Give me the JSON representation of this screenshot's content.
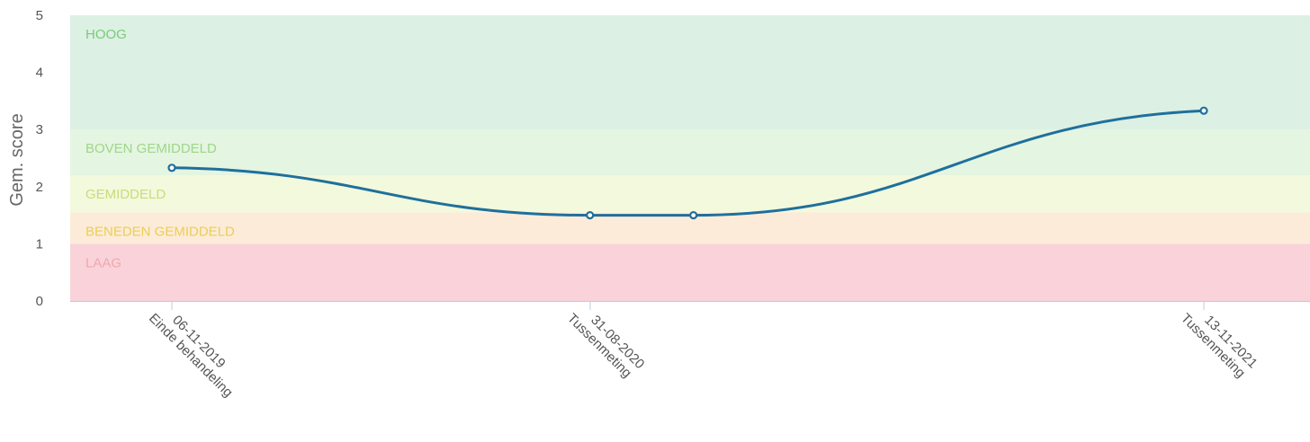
{
  "chart_data": {
    "type": "line",
    "ylabel": "Gem. score",
    "xlabel": "",
    "ylim": [
      0,
      5
    ],
    "yticks": [
      "0",
      "1",
      "2",
      "3",
      "4",
      "5"
    ],
    "bands": [
      {
        "label": "LAAG",
        "from": 0,
        "to": 1,
        "fill": "#f9d3d9",
        "text_color": "#f2a6ae"
      },
      {
        "label": "BENEDEN GEMIDDELD",
        "from": 1,
        "to": 1.55,
        "fill": "#fdebd9",
        "text_color": "#e9cf55"
      },
      {
        "label": "GEMIDDELD",
        "from": 1.55,
        "to": 2.2,
        "fill": "#f2f9dc",
        "text_color": "#c9dc7c"
      },
      {
        "label": "BOVEN GEMIDDELD",
        "from": 2.2,
        "to": 3,
        "fill": "#e4f5e1",
        "text_color": "#9fd68a"
      },
      {
        "label": "HOOG",
        "from": 3,
        "to": 5,
        "fill": "#dcf0e4",
        "text_color": "#7cc97a"
      }
    ],
    "x_ticks": [
      {
        "date": "06-11-2019",
        "label": "Einde behandeling"
      },
      {
        "date": "31-08-2020",
        "label": "Tussenmeting"
      },
      {
        "date": "13-11-2021",
        "label": "Tussenmeting"
      }
    ],
    "series": [
      {
        "color": "#1f6f9c",
        "points": [
          {
            "x": "2019-11-06",
            "y": 2.33
          },
          {
            "x": "2020-08-31",
            "y": 1.5
          },
          {
            "x": "2020-11-13",
            "y": 1.5
          },
          {
            "x": "2021-11-13",
            "y": 3.33
          }
        ]
      }
    ]
  }
}
